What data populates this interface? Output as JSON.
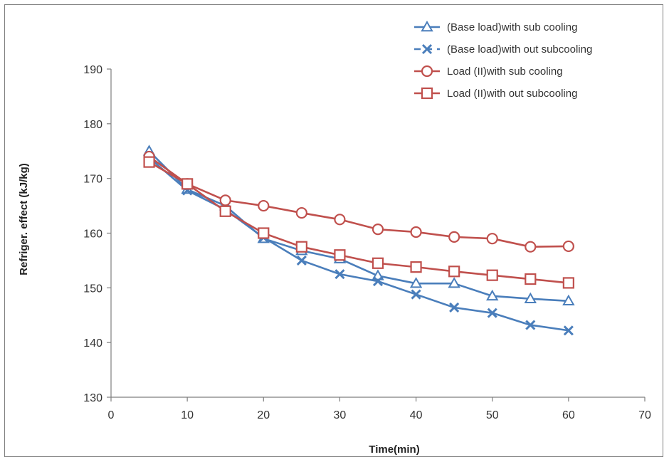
{
  "chart_data": {
    "type": "line",
    "xlabel": "Time(min)",
    "ylabel": "Refriger. effect (kJ/kg)",
    "xlim": [
      0,
      70
    ],
    "ylim": [
      130,
      190
    ],
    "x_ticks": [
      0,
      10,
      20,
      30,
      40,
      50,
      60,
      70
    ],
    "y_ticks": [
      130,
      140,
      150,
      160,
      170,
      180,
      190
    ],
    "grid": false,
    "legend_position": "top-right",
    "x": [
      5,
      10,
      15,
      20,
      25,
      30,
      35,
      40,
      45,
      50,
      55,
      60
    ],
    "series": [
      {
        "name": "(Base load)with sub cooling",
        "marker": "triangle",
        "color": "#4a7ebb",
        "values": [
          175.0,
          168.0,
          165.0,
          159.0,
          156.8,
          155.3,
          152.2,
          150.8,
          150.8,
          148.5,
          148.0,
          147.6
        ]
      },
      {
        "name": "(Base load)with out subcooling",
        "marker": "x",
        "color": "#4a7ebb",
        "dashed": true,
        "values": [
          173.8,
          167.8,
          164.3,
          159.2,
          155.0,
          152.5,
          151.2,
          148.8,
          146.4,
          145.4,
          143.2,
          142.2
        ]
      },
      {
        "name": "Load (II)with sub cooling",
        "marker": "circle",
        "color": "#c0504d",
        "values": [
          174.0,
          169.0,
          166.0,
          165.0,
          163.7,
          162.5,
          160.7,
          160.2,
          159.3,
          159.0,
          157.5,
          157.6
        ]
      },
      {
        "name": "Load (II)with out subcooling",
        "marker": "square",
        "color": "#c0504d",
        "values": [
          173.0,
          169.0,
          164.0,
          160.0,
          157.5,
          156.0,
          154.5,
          153.8,
          153.0,
          152.3,
          151.6,
          150.9
        ]
      }
    ]
  }
}
